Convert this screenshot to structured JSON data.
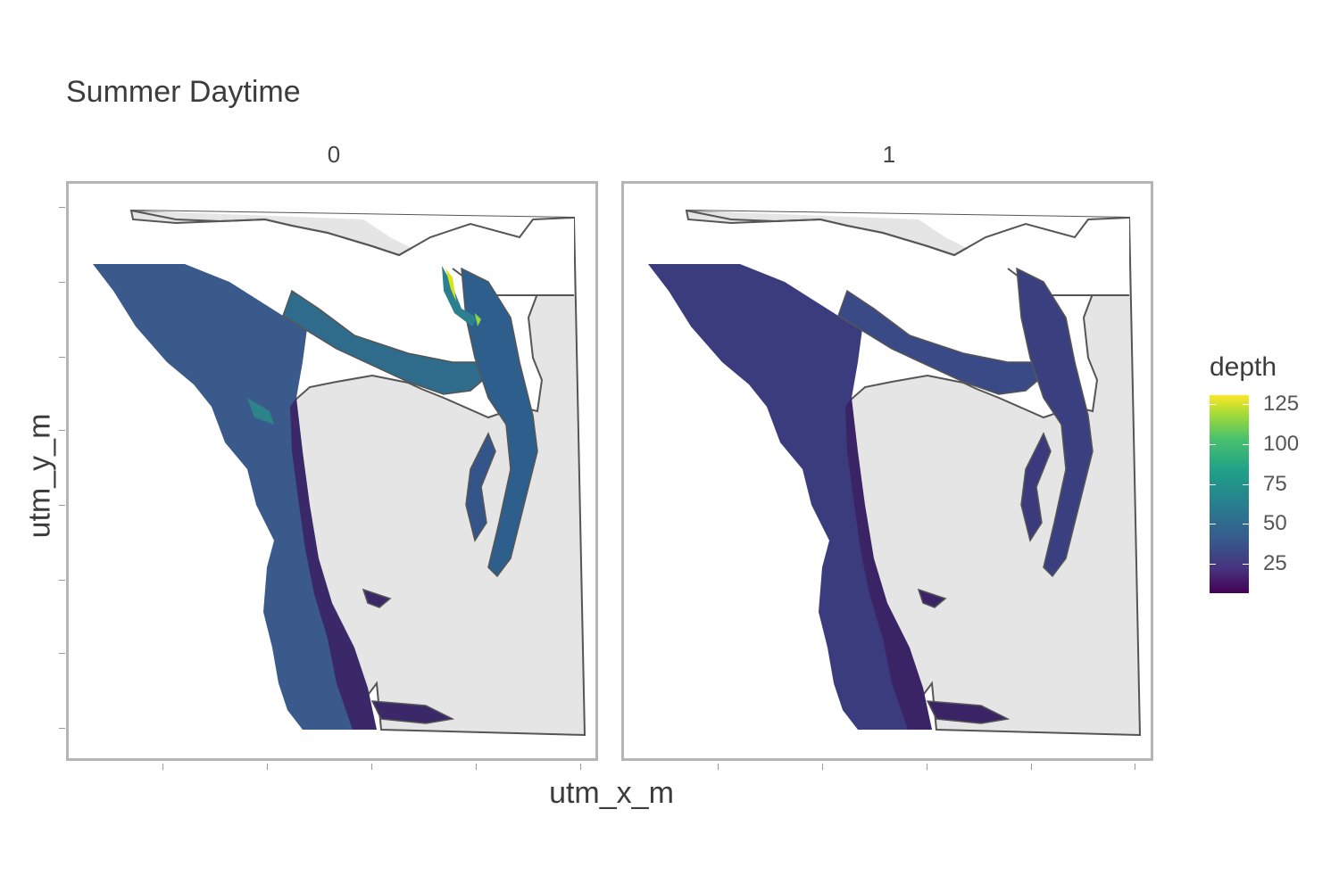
{
  "title": "Summer Daytime",
  "facets": [
    "0",
    "1"
  ],
  "xlabel": "utm_x_m",
  "ylabel": "utm_y_m",
  "legend": {
    "title": "depth",
    "ticks": [
      "125",
      "100",
      "75",
      "50",
      "25"
    ],
    "tick_values": [
      125,
      100,
      75,
      50,
      25
    ],
    "range": [
      3,
      130
    ],
    "colormap": "viridis",
    "colors": [
      "#440154",
      "#46327e",
      "#365c8d",
      "#277f8e",
      "#1fa187",
      "#4ac16d",
      "#a0da39",
      "#fde725"
    ]
  },
  "colors": {
    "land": "#e5e5e5",
    "coast_line": "#555555",
    "panel_border": "#b5b5b5",
    "shallow": "#3e2a6e",
    "mid": "#2e4f86",
    "teal": "#2b7f8e",
    "bright": "#8fd744",
    "yellow": "#d8e219"
  }
}
